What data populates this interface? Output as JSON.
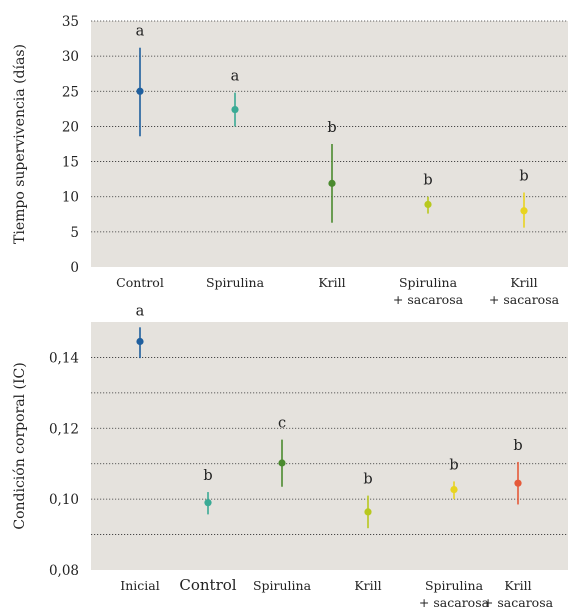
{
  "chart_data": [
    {
      "type": "errorbar",
      "ylabel": "Tiempo supervivencia (días)",
      "ylim": [
        0,
        35
      ],
      "yticks": [
        0,
        5,
        10,
        15,
        20,
        25,
        30,
        35
      ],
      "ytick_labels": [
        "0",
        "5",
        "10",
        "15",
        "20",
        "25",
        "30",
        "35"
      ],
      "grid": "dotted-horizontal",
      "background": "#e5e2dd",
      "categories": [
        {
          "line1": "Control",
          "line2": ""
        },
        {
          "line1": "Spirulina",
          "line2": ""
        },
        {
          "line1": "Krill",
          "line2": ""
        },
        {
          "line1": "Spirulina",
          "line2": "+ sacarosa"
        },
        {
          "line1": "Krill",
          "line2": "+ sacarosa"
        }
      ],
      "points": [
        {
          "mean": 25.0,
          "low": 18.6,
          "high": 31.2,
          "group": "a",
          "color": "#1f5f9e"
        },
        {
          "mean": 22.4,
          "low": 20.0,
          "high": 24.8,
          "group": "a",
          "color": "#3aaa95"
        },
        {
          "mean": 11.9,
          "low": 6.3,
          "high": 17.5,
          "group": "b",
          "color": "#4a8a2e"
        },
        {
          "mean": 8.9,
          "low": 7.6,
          "high": 10.0,
          "group": "b",
          "color": "#b8c81e"
        },
        {
          "mean": 8.0,
          "low": 5.6,
          "high": 10.6,
          "group": "b",
          "color": "#e8d420"
        }
      ]
    },
    {
      "type": "errorbar",
      "ylabel": "Condición corporal (IC)",
      "ylim": [
        0.08,
        0.15
      ],
      "yticks": [
        0.08,
        0.1,
        0.12,
        0.14
      ],
      "ytick_labels": [
        "0,08",
        "0,10",
        "0,12",
        "0,14"
      ],
      "gridlines": [
        0.09,
        0.1,
        0.11,
        0.12,
        0.13,
        0.14
      ],
      "grid": "dotted-horizontal",
      "background": "#e5e2dd",
      "categories": [
        {
          "line1": "Inicial",
          "line2": ""
        },
        {
          "line1": "Control",
          "line2": ""
        },
        {
          "line1": "Spirulina",
          "line2": ""
        },
        {
          "line1": "Krill",
          "line2": ""
        },
        {
          "line1": "Spirulina",
          "line2": "+ sacarosa"
        },
        {
          "line1": "Krill",
          "line2": "+ sacarosa"
        }
      ],
      "points": [
        {
          "mean": 0.1445,
          "low": 0.1398,
          "high": 0.1485,
          "group": "a",
          "color": "#1f5f9e"
        },
        {
          "mean": 0.099,
          "low": 0.0957,
          "high": 0.102,
          "group": "b",
          "color": "#3aaa95"
        },
        {
          "mean": 0.1102,
          "low": 0.1035,
          "high": 0.1168,
          "group": "c",
          "color": "#4a8a2e"
        },
        {
          "mean": 0.0964,
          "low": 0.0918,
          "high": 0.101,
          "group": "b",
          "color": "#b8c81e"
        },
        {
          "mean": 0.1027,
          "low": 0.1,
          "high": 0.105,
          "group": "b",
          "color": "#e8d420"
        },
        {
          "mean": 0.1045,
          "low": 0.0985,
          "high": 0.1105,
          "group": "b",
          "color": "#e55a3a"
        }
      ]
    }
  ]
}
